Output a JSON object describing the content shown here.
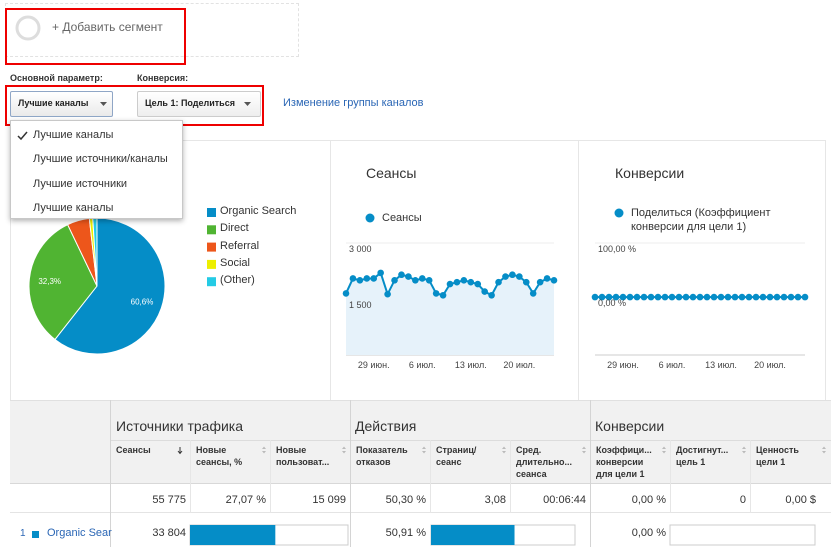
{
  "segment": {
    "label": "+ Добавить сегмент"
  },
  "controls": {
    "primary_label": "Основной параметр:",
    "primary_value": "Лучшие каналы",
    "conversion_label": "Конверсия:",
    "conversion_value": "Цель 1: Поделиться",
    "link": "Изменение группы каналов"
  },
  "menu": {
    "items": [
      "Лучшие каналы",
      "Лучшие источники/каналы",
      "Лучшие источники",
      "Лучшие каналы"
    ],
    "selected": 0
  },
  "pie": {
    "type": "pie",
    "categories": [
      "Organic Search",
      "Direct",
      "Referral",
      "Social",
      "(Other)"
    ],
    "values": [
      60.6,
      32.3,
      5.3,
      0.8,
      1.0
    ],
    "value_labels": [
      "60,6%",
      "32,3%",
      null,
      null,
      null
    ],
    "colors": [
      "#058dc7",
      "#50b432",
      "#ed561b",
      "#edef00",
      "#24cbe5"
    ]
  },
  "sessions_chart": {
    "type": "line",
    "title": "Сеансы",
    "area": true,
    "categories": [
      null,
      null,
      null,
      null,
      "29 июн.",
      null,
      null,
      null,
      null,
      null,
      null,
      "6 июл.",
      null,
      null,
      null,
      null,
      null,
      null,
      "13 июл.",
      null,
      null,
      null,
      null,
      null,
      null,
      "20 июл.",
      null,
      null,
      null,
      null,
      null
    ],
    "series": [
      {
        "name": "Сеансы",
        "color": "#058dc7",
        "values": [
          1650,
          2050,
          2000,
          2050,
          2050,
          2200,
          1630,
          2000,
          2150,
          2100,
          2000,
          2050,
          2000,
          1650,
          1600,
          1900,
          1950,
          2000,
          1950,
          1900,
          1700,
          1600,
          1950,
          2100,
          2150,
          2100,
          1950,
          1650,
          1950,
          2050,
          2000
        ]
      }
    ],
    "ylim": [
      0,
      3000
    ],
    "yticks": [
      {
        "value": 3000,
        "label": "3 000"
      },
      {
        "value": 1500,
        "label": "1 500"
      }
    ]
  },
  "conversions_chart": {
    "type": "line",
    "title": "Конверсии",
    "area": false,
    "categories": [
      null,
      null,
      null,
      null,
      "29 июн.",
      null,
      null,
      null,
      null,
      null,
      null,
      "6 июл.",
      null,
      null,
      null,
      null,
      null,
      null,
      "13 июл.",
      null,
      null,
      null,
      null,
      null,
      null,
      "20 июл.",
      null,
      null,
      null,
      null,
      null
    ],
    "series": [
      {
        "name": "Поделиться (Коэффициент конверсии для цели 1)",
        "color": "#058dc7",
        "values": [
          0,
          0,
          0,
          0,
          0,
          0,
          0,
          0,
          0,
          0,
          0,
          0,
          0,
          0,
          0,
          0,
          0,
          0,
          0,
          0,
          0,
          0,
          0,
          0,
          0,
          0,
          0,
          0,
          0,
          0,
          0
        ]
      }
    ],
    "ylim": [
      -107,
      100
    ],
    "yticks": [
      {
        "value": 100,
        "label": "100,00 %"
      },
      {
        "value": 0,
        "label": "0,00 %"
      }
    ]
  },
  "table": {
    "groups": [
      "Источники трафика",
      "Действия",
      "Конверсии"
    ],
    "columns": [
      "Сеансы",
      "Новые\nсеансы, %",
      "Новые\nпользоват...",
      "Показатель\nотказов",
      "Страниц/\nсеанс",
      "Сред.\nдлительно...\nсеанса",
      "Коэффици...\nконверсии\nдля цели 1",
      "Достигнут...\nцель 1",
      "Ценность\nцели 1"
    ],
    "totals": [
      "55 775",
      "27,07 %",
      "15 099",
      "50,30 %",
      "3,08",
      "00:06:44",
      "0,00 %",
      "0",
      "0,00 $"
    ],
    "rows": [
      {
        "index": "1",
        "name": "Organic Sear",
        "sessions": "33 804",
        "bounce_rate": "50,91 %",
        "conversion_rate": "0,00 %",
        "bars": [
          54,
          58,
          0
        ]
      }
    ]
  }
}
